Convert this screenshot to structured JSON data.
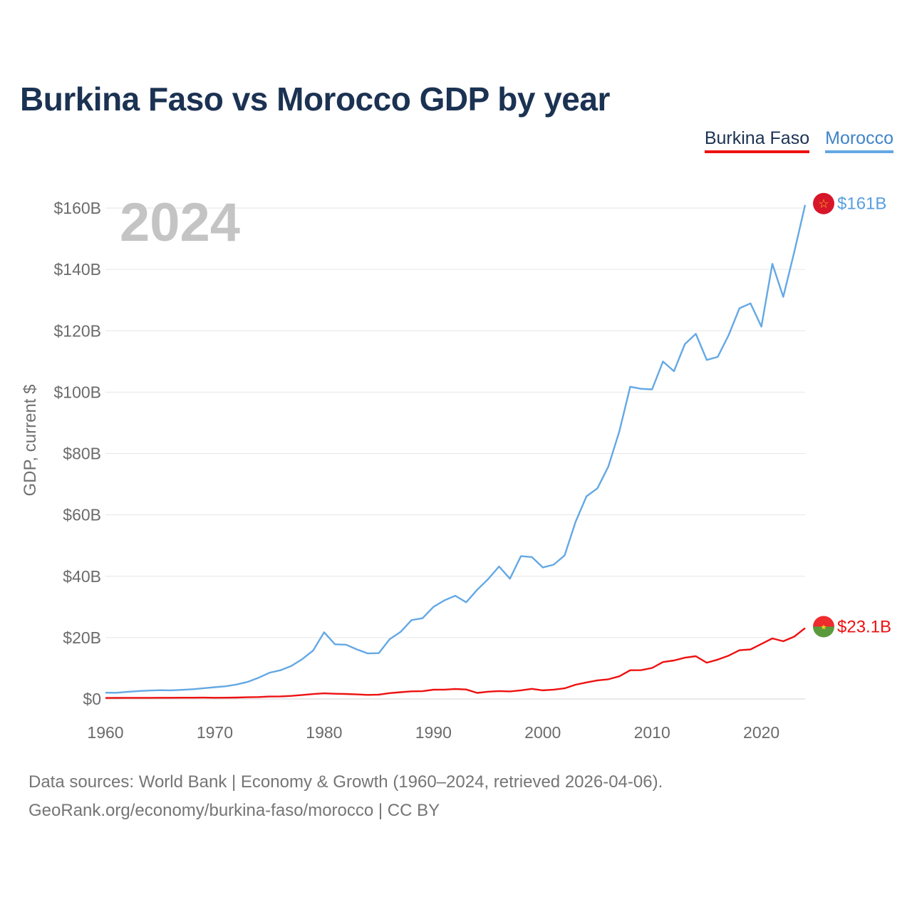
{
  "title": "Burkina Faso vs Morocco GDP by year",
  "legend": [
    {
      "label": "Burkina Faso",
      "color": "#ee1111"
    },
    {
      "label": "Morocco",
      "color": "#64a8e4"
    }
  ],
  "year_overlay": "2024",
  "source_line1": "Data sources: World Bank | Economy & Growth (1960–2024, retrieved 2026-04-06).",
  "source_line2": "GeoRank.org/economy/burkina-faso/morocco | CC BY",
  "chart_data": {
    "type": "line",
    "title": "Burkina Faso vs Morocco GDP by year",
    "xlabel": "",
    "ylabel": "GDP, current $",
    "xlim": [
      1960,
      2024
    ],
    "ylim": [
      0,
      160
    ],
    "y_unit": "billion USD",
    "x_ticks": [
      1960,
      1970,
      1980,
      1990,
      2000,
      2010,
      2020
    ],
    "y_ticks": [
      0,
      20,
      40,
      60,
      80,
      100,
      120,
      140,
      160
    ],
    "y_tick_labels": [
      "$0",
      "$20B",
      "$40B",
      "$60B",
      "$80B",
      "$100B",
      "$120B",
      "$140B",
      "$160B"
    ],
    "grid": true,
    "x": [
      1960,
      1961,
      1962,
      1963,
      1964,
      1965,
      1966,
      1967,
      1968,
      1969,
      1970,
      1971,
      1972,
      1973,
      1974,
      1975,
      1976,
      1977,
      1978,
      1979,
      1980,
      1981,
      1982,
      1983,
      1984,
      1985,
      1986,
      1987,
      1988,
      1989,
      1990,
      1991,
      1992,
      1993,
      1994,
      1995,
      1996,
      1997,
      1998,
      1999,
      2000,
      2001,
      2002,
      2003,
      2004,
      2005,
      2006,
      2007,
      2008,
      2009,
      2010,
      2011,
      2012,
      2013,
      2014,
      2015,
      2016,
      2017,
      2018,
      2019,
      2020,
      2021,
      2022,
      2023,
      2024
    ],
    "series": [
      {
        "name": "Burkina Faso",
        "color": "#ee1111",
        "end_label": "$23.1B",
        "values": [
          0.33,
          0.34,
          0.36,
          0.37,
          0.38,
          0.39,
          0.4,
          0.41,
          0.42,
          0.44,
          0.39,
          0.41,
          0.47,
          0.55,
          0.63,
          0.79,
          0.84,
          0.99,
          1.3,
          1.6,
          1.84,
          1.7,
          1.62,
          1.49,
          1.33,
          1.42,
          1.91,
          2.21,
          2.48,
          2.52,
          3.02,
          3.04,
          3.25,
          3.08,
          1.98,
          2.38,
          2.58,
          2.45,
          2.8,
          3.29,
          2.81,
          3.04,
          3.45,
          4.64,
          5.38,
          6.06,
          6.42,
          7.38,
          9.35,
          9.39,
          10.1,
          12.03,
          12.54,
          13.45,
          13.94,
          11.82,
          12.81,
          14.11,
          15.89,
          16.14,
          17.92,
          19.74,
          18.82,
          20.32,
          23.1
        ]
      },
      {
        "name": "Morocco",
        "color": "#64a8e4",
        "end_label": "$161B",
        "values": [
          2.04,
          2.02,
          2.29,
          2.58,
          2.73,
          2.85,
          2.81,
          2.97,
          3.17,
          3.51,
          3.83,
          4.14,
          4.72,
          5.56,
          6.89,
          8.55,
          9.35,
          10.75,
          12.99,
          15.78,
          21.73,
          17.8,
          17.7,
          16.14,
          14.85,
          14.94,
          19.49,
          21.87,
          25.71,
          26.31,
          30.0,
          32.13,
          33.66,
          31.51,
          35.57,
          39.03,
          43.16,
          39.21,
          46.54,
          46.25,
          42.87,
          43.78,
          46.77,
          57.71,
          66.04,
          68.67,
          75.74,
          87.18,
          101.75,
          101.09,
          100.89,
          109.97,
          106.81,
          115.65,
          119.02,
          110.48,
          111.49,
          118.55,
          127.34,
          128.92,
          121.35,
          141.82,
          131.07,
          145.62,
          161.0
        ]
      }
    ]
  }
}
